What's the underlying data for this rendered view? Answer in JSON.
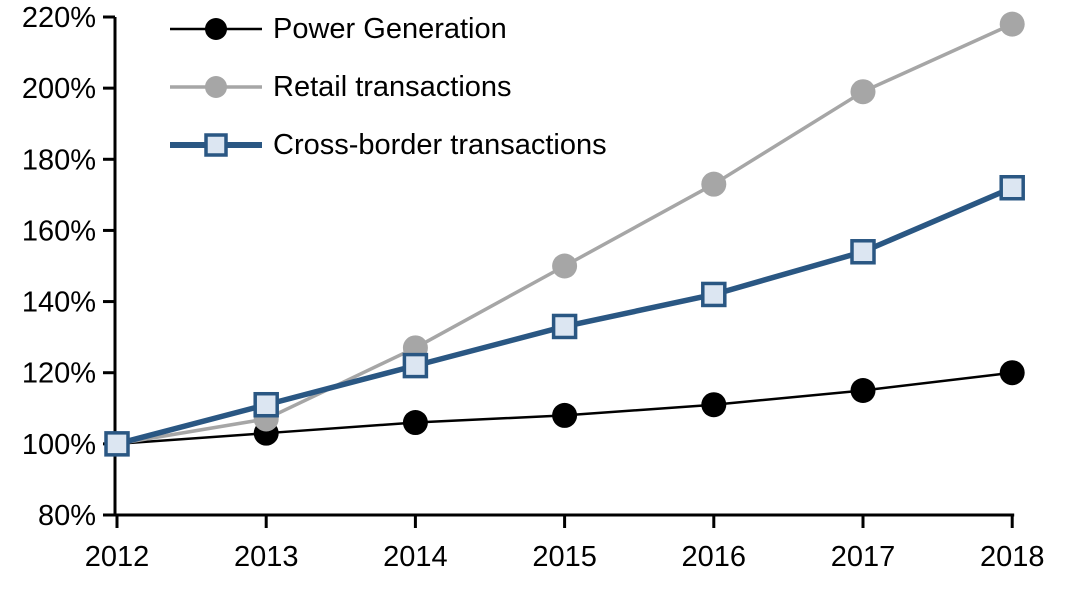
{
  "chart_data": {
    "type": "line",
    "title": "",
    "x": [
      2012,
      2013,
      2014,
      2015,
      2016,
      2017,
      2018
    ],
    "x_tick_labels": [
      "2012",
      "2013",
      "2014",
      "2015",
      "2016",
      "2017",
      "2018"
    ],
    "y_tick_labels": [
      "80%",
      "100%",
      "120%",
      "140%",
      "160%",
      "180%",
      "200%",
      "220%"
    ],
    "ylim": [
      80,
      220
    ],
    "y_tick_step": 20,
    "grid": false,
    "legend_position": "top-left",
    "axis_color": "#000000",
    "series": [
      {
        "name": "Power Generation",
        "values": [
          100,
          103,
          106,
          108,
          111,
          115,
          120
        ],
        "color": "#000000",
        "marker": "circle",
        "marker_fill": "#000000",
        "line_width": 2.5
      },
      {
        "name": "Retail transactions",
        "values": [
          100,
          107,
          127,
          150,
          173,
          199,
          218
        ],
        "color": "#A6A6A6",
        "marker": "circle",
        "marker_fill": "#A6A6A6",
        "line_width": 3.5
      },
      {
        "name": "Cross-border transactions",
        "values": [
          100,
          111,
          122,
          133,
          142,
          154,
          172
        ],
        "color": "#2A5783",
        "marker": "square",
        "marker_fill": "#DCE6F2",
        "line_width": 5.5
      }
    ]
  }
}
